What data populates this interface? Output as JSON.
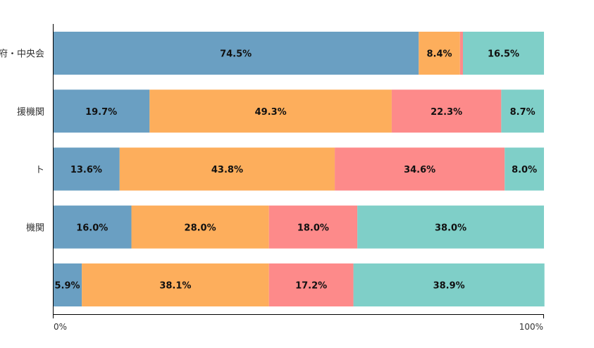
{
  "chart_data": {
    "type": "bar",
    "orientation": "horizontal",
    "stacked": true,
    "normalized": true,
    "categories": [
      "府・中央会",
      "援機関",
      "ト",
      "機関",
      ""
    ],
    "series": [
      {
        "values": [
          74.5,
          19.7,
          13.6,
          16.0,
          5.9
        ]
      },
      {
        "values": [
          8.4,
          49.3,
          43.8,
          28.0,
          38.1
        ]
      },
      {
        "values": [
          0.6,
          22.3,
          34.6,
          18.0,
          17.2
        ]
      },
      {
        "values": [
          16.5,
          8.7,
          8.0,
          38.0,
          38.9
        ]
      }
    ],
    "data_labels": [
      [
        "74.5%",
        "8.4%",
        "",
        "16.5%"
      ],
      [
        "19.7%",
        "49.3%",
        "22.3%",
        "8.7%"
      ],
      [
        "13.6%",
        "43.8%",
        "34.6%",
        "8.0%"
      ],
      [
        "16.0%",
        "28.0%",
        "18.0%",
        "38.0%"
      ],
      [
        "5.9%",
        "38.1%",
        "17.2%",
        "38.9%"
      ]
    ],
    "colors": [
      "#6a9fc2",
      "#fdae5c",
      "#fd8a8a",
      "#7fcfc8"
    ],
    "xlim": [
      0,
      100
    ],
    "x_ticks": [
      "0%",
      "100%"
    ],
    "grid": false,
    "legend": "none"
  }
}
